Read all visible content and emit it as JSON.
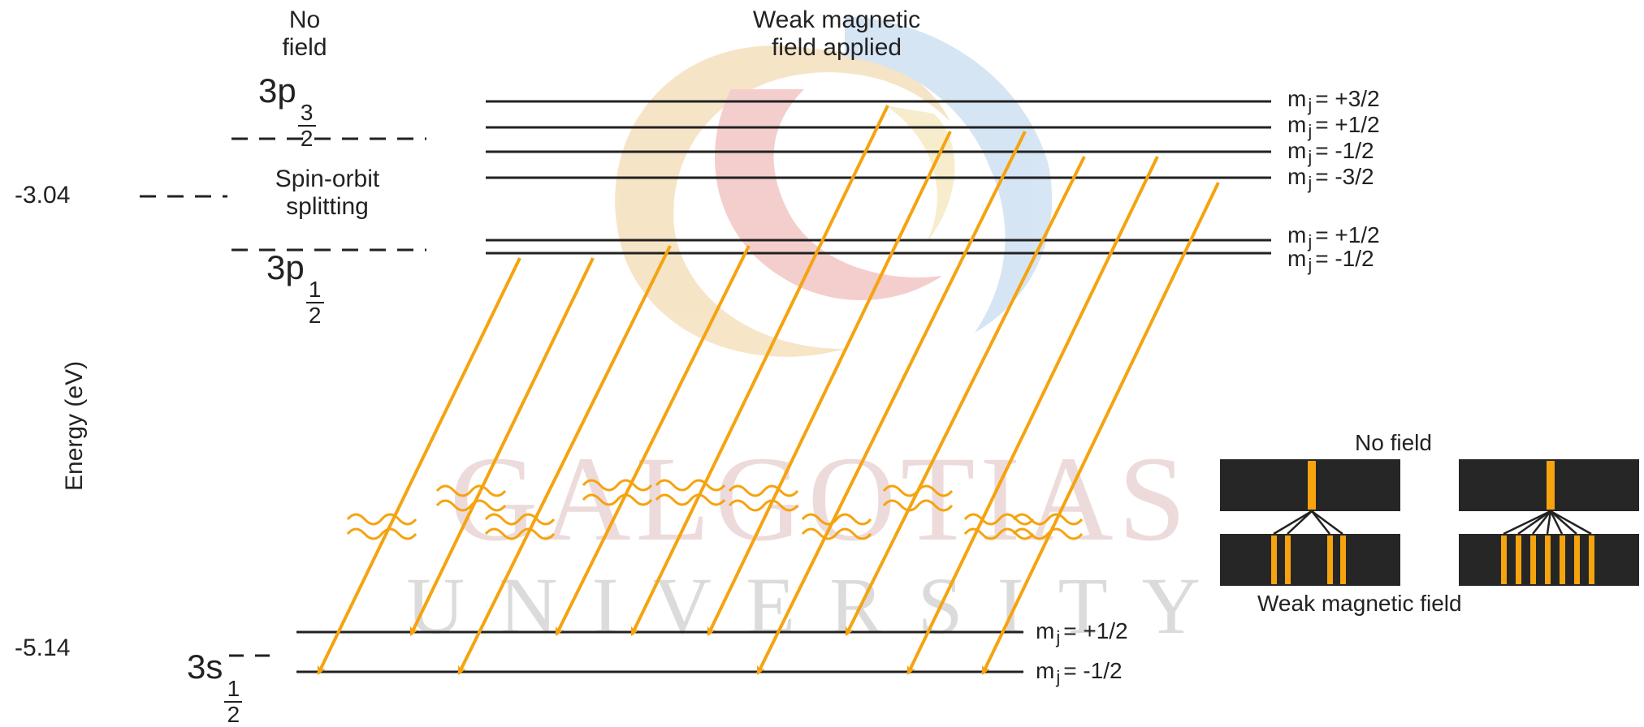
{
  "header": {
    "no_field": [
      "No",
      "field"
    ],
    "weak_field": [
      "Weak magnetic",
      "field applied"
    ]
  },
  "levels": {
    "p32_term": "3p",
    "p32_frac_num": "3",
    "p32_frac_den": "2",
    "spin_orbit": [
      "Spin-orbit",
      "splitting"
    ],
    "p12_term": "3p",
    "p12_frac_num": "1",
    "p12_frac_den": "2",
    "s12_term": "3s",
    "s12_frac_num": "1",
    "s12_frac_den": "2"
  },
  "energies": {
    "upper": "-3.04",
    "lower": "-5.14",
    "axis_label": "Energy (eV)"
  },
  "mj_upper": [
    {
      "m": "m",
      "sub": "j",
      "val": "= +3/2"
    },
    {
      "m": "m",
      "sub": "j",
      "val": "= +1/2"
    },
    {
      "m": "m",
      "sub": "j",
      "val": "= -1/2"
    },
    {
      "m": "m",
      "sub": "j",
      "val": "= -3/2"
    }
  ],
  "mj_middle": [
    {
      "m": "m",
      "sub": "j",
      "val": "= +1/2"
    },
    {
      "m": "m",
      "sub": "j",
      "val": "= -1/2"
    }
  ],
  "mj_lower": [
    {
      "m": "m",
      "sub": "j",
      "val": "= +1/2"
    },
    {
      "m": "m",
      "sub": "j",
      "val": "= -1/2"
    }
  ],
  "inset": {
    "top_label": "No field",
    "bottom_label": "Weak magnetic field"
  },
  "watermark": {
    "line1": "GALGOTIAS",
    "line2": "UNIVERSITY"
  },
  "colors": {
    "arrow": "#f5a30f",
    "line": "#222222",
    "panel": "#262626",
    "watermark": "#cc9a9a"
  }
}
